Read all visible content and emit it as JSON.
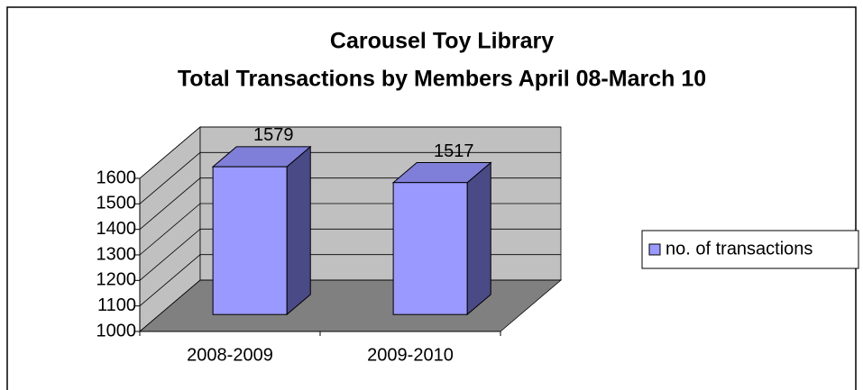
{
  "chart_data": {
    "type": "bar",
    "title": "Carousel Toy Library",
    "subtitle": "Total Transactions by Members April 08-March 10",
    "categories": [
      "2008-2009",
      "2009-2010"
    ],
    "series": [
      {
        "name": "no. of transactions",
        "color": "#9999ff",
        "values": [
          1579,
          1517
        ]
      }
    ],
    "ylim": [
      1000,
      1600
    ],
    "yticks": [
      1000,
      1100,
      1200,
      1300,
      1400,
      1500,
      1600
    ],
    "grid": true,
    "legend": "right"
  }
}
